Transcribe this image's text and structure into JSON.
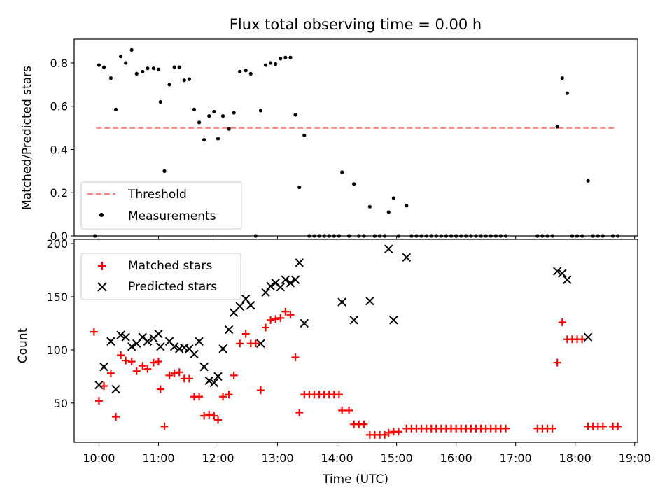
{
  "chart_data": [
    {
      "type": "scatter",
      "title": "Flux total observing time = 0.00 h",
      "xlabel": "",
      "ylabel": "Matched/Predicted stars",
      "xlim": [
        "09:35",
        "19:03"
      ],
      "ylim": [
        0,
        0.91
      ],
      "y_ticks": [
        0.0,
        0.2,
        0.4,
        0.6,
        0.8
      ],
      "x_ticks": [
        "10:00",
        "11:00",
        "12:00",
        "13:00",
        "14:00",
        "15:00",
        "16:00",
        "17:00",
        "18:00",
        "19:00"
      ],
      "show_x_tick_labels": false,
      "legend": {
        "position": "lower-left",
        "entries": [
          "Threshold",
          "Measurements"
        ]
      },
      "series": [
        {
          "name": "Threshold",
          "kind": "line",
          "style": "dashed",
          "color": "#ff7f7f",
          "points": [
            [
              "09:57",
              0.5
            ],
            [
              "18:40",
              0.5
            ]
          ]
        },
        {
          "name": "Measurements",
          "kind": "scatter",
          "marker": "dot",
          "color": "#000000",
          "points": [
            [
              "09:56",
              0.0
            ],
            [
              "10:00",
              0.79
            ],
            [
              "10:05",
              0.78
            ],
            [
              "10:12",
              0.73
            ],
            [
              "10:17",
              0.585
            ],
            [
              "10:22",
              0.83
            ],
            [
              "10:27",
              0.8
            ],
            [
              "10:33",
              0.86
            ],
            [
              "10:38",
              0.75
            ],
            [
              "10:44",
              0.76
            ],
            [
              "10:49",
              0.775
            ],
            [
              "10:55",
              0.775
            ],
            [
              "11:00",
              0.77
            ],
            [
              "11:02",
              0.62
            ],
            [
              "11:06",
              0.3
            ],
            [
              "11:11",
              0.7
            ],
            [
              "11:16",
              0.78
            ],
            [
              "11:21",
              0.78
            ],
            [
              "11:26",
              0.72
            ],
            [
              "11:31",
              0.725
            ],
            [
              "11:36",
              0.585
            ],
            [
              "11:41",
              0.525
            ],
            [
              "11:46",
              0.445
            ],
            [
              "11:51",
              0.555
            ],
            [
              "11:56",
              0.575
            ],
            [
              "12:00",
              0.45
            ],
            [
              "12:05",
              0.555
            ],
            [
              "12:11",
              0.495
            ],
            [
              "12:16",
              0.57
            ],
            [
              "12:22",
              0.76
            ],
            [
              "12:28",
              0.765
            ],
            [
              "12:33",
              0.75
            ],
            [
              "12:38",
              0.0
            ],
            [
              "12:43",
              0.58
            ],
            [
              "12:48",
              0.79
            ],
            [
              "12:53",
              0.8
            ],
            [
              "12:58",
              0.795
            ],
            [
              "13:03",
              0.82
            ],
            [
              "13:08",
              0.825
            ],
            [
              "13:13",
              0.825
            ],
            [
              "13:18",
              0.56
            ],
            [
              "13:22",
              0.225
            ],
            [
              "13:27",
              0.465
            ],
            [
              "13:32",
              0.0
            ],
            [
              "13:37",
              0.0
            ],
            [
              "13:42",
              0.0
            ],
            [
              "13:47",
              0.0
            ],
            [
              "13:52",
              0.0
            ],
            [
              "13:57",
              0.0
            ],
            [
              "14:02",
              0.0
            ],
            [
              "14:05",
              0.295
            ],
            [
              "14:12",
              0.0
            ],
            [
              "14:17",
              0.24
            ],
            [
              "14:22",
              0.0
            ],
            [
              "14:27",
              0.0
            ],
            [
              "14:33",
              0.135
            ],
            [
              "14:38",
              0.0
            ],
            [
              "14:43",
              0.0
            ],
            [
              "14:48",
              0.0
            ],
            [
              "14:52",
              0.11
            ],
            [
              "14:57",
              0.175
            ],
            [
              "15:02",
              0.0
            ],
            [
              "15:10",
              0.14
            ],
            [
              "15:15",
              0.0
            ],
            [
              "15:20",
              0.0
            ],
            [
              "15:25",
              0.0
            ],
            [
              "15:30",
              0.0
            ],
            [
              "15:35",
              0.0
            ],
            [
              "15:40",
              0.0
            ],
            [
              "15:45",
              0.0
            ],
            [
              "15:50",
              0.0
            ],
            [
              "15:55",
              0.0
            ],
            [
              "16:00",
              0.0
            ],
            [
              "16:05",
              0.0
            ],
            [
              "16:10",
              0.0
            ],
            [
              "16:15",
              0.0
            ],
            [
              "16:20",
              0.0
            ],
            [
              "16:25",
              0.0
            ],
            [
              "16:30",
              0.0
            ],
            [
              "16:35",
              0.0
            ],
            [
              "16:40",
              0.0
            ],
            [
              "16:45",
              0.0
            ],
            [
              "16:50",
              0.0
            ],
            [
              "17:22",
              0.0
            ],
            [
              "17:27",
              0.0
            ],
            [
              "17:32",
              0.0
            ],
            [
              "17:37",
              0.0
            ],
            [
              "17:42",
              0.505
            ],
            [
              "17:47",
              0.73
            ],
            [
              "17:52",
              0.66
            ],
            [
              "17:57",
              0.0
            ],
            [
              "18:02",
              0.0
            ],
            [
              "18:07",
              0.0
            ],
            [
              "18:13",
              0.255
            ],
            [
              "18:18",
              0.0
            ],
            [
              "18:23",
              0.0
            ],
            [
              "18:28",
              0.0
            ],
            [
              "18:38",
              0.0
            ],
            [
              "18:43",
              0.0
            ]
          ]
        }
      ]
    },
    {
      "type": "scatter",
      "title": "",
      "xlabel": "Time (UTC)",
      "ylabel": "Count",
      "xlim": [
        "09:35",
        "19:03"
      ],
      "ylim": [
        13,
        204
      ],
      "y_ticks": [
        50,
        100,
        150,
        200
      ],
      "x_ticks": [
        "10:00",
        "11:00",
        "12:00",
        "13:00",
        "14:00",
        "15:00",
        "16:00",
        "17:00",
        "18:00",
        "19:00"
      ],
      "show_x_tick_labels": true,
      "legend": {
        "position": "upper-left",
        "entries": [
          "Matched stars",
          "Predicted stars"
        ]
      },
      "series": [
        {
          "name": "Matched stars",
          "kind": "scatter",
          "marker": "plus",
          "color": "#ff0000",
          "points": [
            [
              "09:55",
              117
            ],
            [
              "10:00",
              52
            ],
            [
              "10:05",
              66
            ],
            [
              "10:12",
              78
            ],
            [
              "10:17",
              37
            ],
            [
              "10:22",
              95
            ],
            [
              "10:27",
              90
            ],
            [
              "10:33",
              89
            ],
            [
              "10:38",
              80
            ],
            [
              "10:44",
              85
            ],
            [
              "10:49",
              82
            ],
            [
              "10:55",
              88
            ],
            [
              "11:00",
              89
            ],
            [
              "11:02",
              63
            ],
            [
              "11:06",
              28
            ],
            [
              "11:11",
              76
            ],
            [
              "11:16",
              78
            ],
            [
              "11:21",
              79
            ],
            [
              "11:26",
              73
            ],
            [
              "11:31",
              73
            ],
            [
              "11:36",
              56
            ],
            [
              "11:41",
              56
            ],
            [
              "11:46",
              38
            ],
            [
              "11:51",
              39
            ],
            [
              "11:56",
              38
            ],
            [
              "12:00",
              34
            ],
            [
              "12:05",
              56
            ],
            [
              "12:11",
              58
            ],
            [
              "12:16",
              76
            ],
            [
              "12:22",
              106
            ],
            [
              "12:28",
              115
            ],
            [
              "12:33",
              106
            ],
            [
              "12:38",
              106
            ],
            [
              "12:43",
              62
            ],
            [
              "12:48",
              121
            ],
            [
              "12:53",
              128
            ],
            [
              "12:58",
              129
            ],
            [
              "13:03",
              130
            ],
            [
              "13:08",
              136
            ],
            [
              "13:13",
              133
            ],
            [
              "13:18",
              93
            ],
            [
              "13:22",
              41
            ],
            [
              "13:27",
              58
            ],
            [
              "13:32",
              58
            ],
            [
              "13:37",
              58
            ],
            [
              "13:42",
              58
            ],
            [
              "13:47",
              58
            ],
            [
              "13:52",
              58
            ],
            [
              "13:57",
              58
            ],
            [
              "14:02",
              58
            ],
            [
              "14:05",
              43
            ],
            [
              "14:12",
              43
            ],
            [
              "14:17",
              30
            ],
            [
              "14:22",
              30
            ],
            [
              "14:27",
              30
            ],
            [
              "14:33",
              20
            ],
            [
              "14:38",
              20
            ],
            [
              "14:43",
              20
            ],
            [
              "14:48",
              20
            ],
            [
              "14:52",
              22
            ],
            [
              "14:57",
              23
            ],
            [
              "15:02",
              23
            ],
            [
              "15:10",
              26
            ],
            [
              "15:15",
              26
            ],
            [
              "15:20",
              26
            ],
            [
              "15:25",
              26
            ],
            [
              "15:30",
              26
            ],
            [
              "15:35",
              26
            ],
            [
              "15:40",
              26
            ],
            [
              "15:45",
              26
            ],
            [
              "15:50",
              26
            ],
            [
              "15:55",
              26
            ],
            [
              "16:00",
              26
            ],
            [
              "16:05",
              26
            ],
            [
              "16:10",
              26
            ],
            [
              "16:15",
              26
            ],
            [
              "16:20",
              26
            ],
            [
              "16:25",
              26
            ],
            [
              "16:30",
              26
            ],
            [
              "16:35",
              26
            ],
            [
              "16:40",
              26
            ],
            [
              "16:45",
              26
            ],
            [
              "16:50",
              26
            ],
            [
              "17:22",
              26
            ],
            [
              "17:27",
              26
            ],
            [
              "17:32",
              26
            ],
            [
              "17:37",
              26
            ],
            [
              "17:42",
              88
            ],
            [
              "17:47",
              126
            ],
            [
              "17:52",
              110
            ],
            [
              "17:57",
              110
            ],
            [
              "18:02",
              110
            ],
            [
              "18:07",
              110
            ],
            [
              "18:13",
              28
            ],
            [
              "18:18",
              28
            ],
            [
              "18:23",
              28
            ],
            [
              "18:28",
              28
            ],
            [
              "18:38",
              28
            ],
            [
              "18:43",
              28
            ]
          ]
        },
        {
          "name": "Predicted stars",
          "kind": "scatter",
          "marker": "cross",
          "color": "#000000",
          "points": [
            [
              "10:00",
              67
            ],
            [
              "10:05",
              84
            ],
            [
              "10:12",
              108
            ],
            [
              "10:17",
              63
            ],
            [
              "10:22",
              114
            ],
            [
              "10:27",
              112
            ],
            [
              "10:33",
              103
            ],
            [
              "10:38",
              106
            ],
            [
              "10:44",
              112
            ],
            [
              "10:49",
              108
            ],
            [
              "10:55",
              111
            ],
            [
              "11:00",
              115
            ],
            [
              "11:02",
              103
            ],
            [
              "11:11",
              108
            ],
            [
              "11:16",
              103
            ],
            [
              "11:21",
              101
            ],
            [
              "11:26",
              102
            ],
            [
              "11:31",
              101
            ],
            [
              "11:36",
              96
            ],
            [
              "11:41",
              108
            ],
            [
              "11:46",
              84
            ],
            [
              "11:51",
              71
            ],
            [
              "11:56",
              69
            ],
            [
              "12:00",
              75
            ],
            [
              "12:05",
              101
            ],
            [
              "12:11",
              119
            ],
            [
              "12:16",
              135
            ],
            [
              "12:22",
              141
            ],
            [
              "12:28",
              148
            ],
            [
              "12:33",
              142
            ],
            [
              "12:43",
              106
            ],
            [
              "12:48",
              154
            ],
            [
              "12:53",
              160
            ],
            [
              "12:58",
              163
            ],
            [
              "13:03",
              159
            ],
            [
              "13:08",
              166
            ],
            [
              "13:13",
              163
            ],
            [
              "13:18",
              166
            ],
            [
              "13:22",
              182
            ],
            [
              "13:27",
              125
            ],
            [
              "14:05",
              145
            ],
            [
              "14:17",
              128
            ],
            [
              "14:33",
              146
            ],
            [
              "14:52",
              195
            ],
            [
              "14:57",
              128
            ],
            [
              "15:10",
              187
            ],
            [
              "17:42",
              174
            ],
            [
              "17:47",
              172
            ],
            [
              "17:52",
              166
            ],
            [
              "18:13",
              112
            ]
          ]
        }
      ]
    }
  ]
}
